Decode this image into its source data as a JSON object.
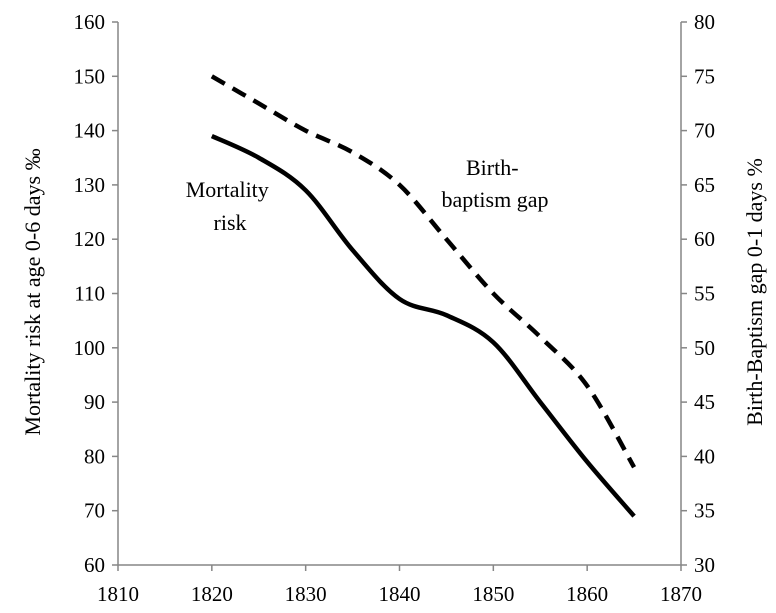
{
  "chart_data": {
    "type": "line",
    "title": "",
    "xlabel": "",
    "ylabel": "Mortality risk at age 0-6  days ‰",
    "y2label": "Birth-Baptism gap 0-1 days %",
    "xlim": [
      1810,
      1870
    ],
    "ylim": [
      60,
      160
    ],
    "y2lim": [
      30,
      80
    ],
    "x_ticks": [
      1810,
      1820,
      1830,
      1840,
      1850,
      1860,
      1870
    ],
    "y_ticks": [
      60,
      70,
      80,
      90,
      100,
      110,
      120,
      130,
      140,
      150,
      160
    ],
    "y2_ticks": [
      30,
      35,
      40,
      45,
      50,
      55,
      60,
      65,
      70,
      75,
      80
    ],
    "grid": false,
    "legend": "none",
    "series": [
      {
        "axis": "left",
        "style": "solid",
        "color": "#000000",
        "x": [
          1820,
          1825,
          1830,
          1835,
          1840,
          1845,
          1850,
          1855,
          1860,
          1865
        ],
        "y": [
          139,
          135,
          129,
          118,
          109,
          106,
          101,
          90,
          79,
          69
        ]
      },
      {
        "axis": "right",
        "style": "dashed",
        "color": "#000000",
        "x": [
          1820,
          1825,
          1830,
          1835,
          1840,
          1845,
          1850,
          1855,
          1860,
          1865
        ],
        "y": [
          75,
          72.5,
          70,
          68,
          65,
          60,
          55,
          51,
          46.5,
          39
        ]
      }
    ],
    "annotations": [
      {
        "label": "annot-mortality",
        "lines": [
          "Mortality",
          "risk"
        ]
      },
      {
        "label": "annot-gap",
        "lines": [
          "Birth-",
          "baptism gap"
        ]
      }
    ]
  }
}
